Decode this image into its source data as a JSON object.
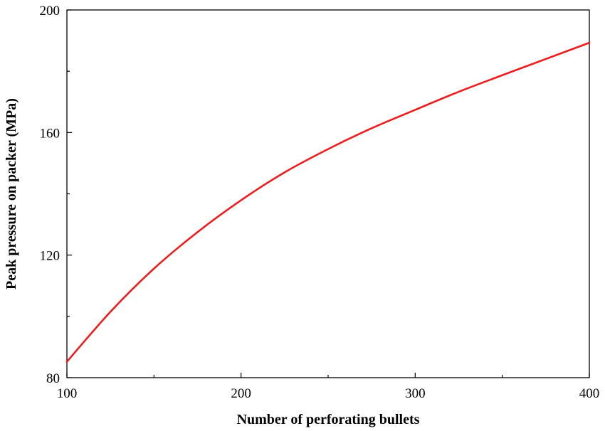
{
  "chart_data": {
    "type": "line",
    "title": "",
    "xlabel": "Number of perforating bullets",
    "ylabel": "Peak pressure on packer (MPa)",
    "xlim": [
      100,
      400
    ],
    "ylim": [
      80,
      200
    ],
    "x_ticks": [
      100,
      200,
      300,
      400
    ],
    "y_ticks": [
      80,
      120,
      160,
      200
    ],
    "x_tick_labels": [
      "100",
      "200",
      "300",
      "400"
    ],
    "y_tick_labels": [
      "80",
      "120",
      "160",
      "200"
    ],
    "x_minor_step": 50,
    "y_minor_step": 20,
    "grid": false,
    "legend": "none",
    "series": [
      {
        "color": "#ee1c1c",
        "x": [
          100,
          125,
          150,
          175,
          200,
          225,
          250,
          275,
          300,
          325,
          350,
          375,
          400
        ],
        "y": [
          85.2,
          101.5,
          115.6,
          127.5,
          137.9,
          147.0,
          154.6,
          161.4,
          167.4,
          173.3,
          178.7,
          184.0,
          189.3
        ]
      }
    ]
  }
}
